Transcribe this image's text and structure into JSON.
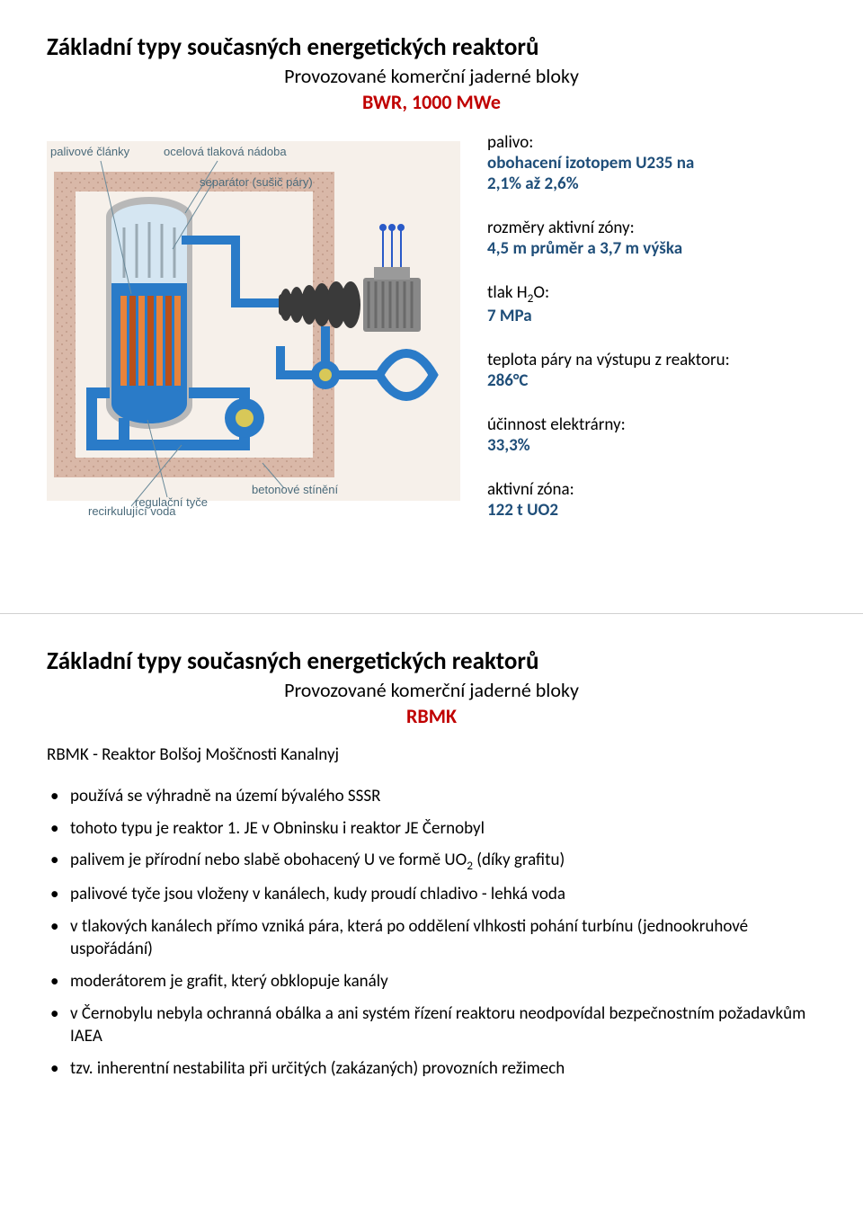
{
  "slide1": {
    "title": "Základní typy současných energetických reaktorů",
    "subtitle": "Provozované komerční jaderné bloky",
    "reactor_name": "BWR, 1000 MWe",
    "reactor_name_color": "#c00000",
    "specs": {
      "fuel_label": "palivo:",
      "fuel_value1": "obohacení izotopem U235 na",
      "fuel_value2": "2,1% až 2,6%",
      "fuel_color": "#1f4e79",
      "dims_label": "rozměry aktivní zóny:",
      "dims_value": "4,5 m průměr a 3,7 m výška",
      "dims_color": "#1f4e79",
      "pressure_label_prefix": "tlak H",
      "pressure_label_sub": "2",
      "pressure_label_suffix": "O:",
      "pressure_value": "7 MPa",
      "pressure_color": "#1f4e79",
      "temp_label": "teplota páry na výstupu z reaktoru:",
      "temp_value": "286°C",
      "temp_color": "#1f4e79",
      "eff_label": "účinnost elektrárny:",
      "eff_value": "33,3%",
      "eff_color": "#1f4e79",
      "zone_label": "aktivní zóna:",
      "zone_value": "122 t UO2",
      "zone_color": "#1f4e79"
    },
    "diagram": {
      "labels": {
        "fuel_rods": "palivové články",
        "vessel": "ocelová tlaková nádoba",
        "separator": "separátor (sušič páry)",
        "control_rods": "regulační tyče",
        "shielding": "betonové stínění",
        "recirculating": "recirkulující voda"
      },
      "colors": {
        "concrete_outer": "#d9b8a8",
        "concrete_dots": "#c09888",
        "water_blue": "#2a7bc8",
        "steam_light": "#d5e6f2",
        "vessel_gray": "#b8b8b8",
        "rod_orange": "#e8833a",
        "rod_dark": "#b8501a",
        "turbine_dark": "#3a3a3a",
        "generator_gray": "#888888",
        "generator_stripes": "#6a6a6a",
        "tower_lines": "#2a5ac8",
        "label_gray": "#4a6a7a",
        "pump_yellow": "#d8c858",
        "background": "#f6f0ea"
      }
    }
  },
  "slide2": {
    "title": "Základní typy současných energetických reaktorů",
    "subtitle": "Provozované komerční jaderné bloky",
    "reactor_name": "RBMK",
    "reactor_name_color": "#c00000",
    "fullname": "RBMK - Reaktor Bolšoj Moščnosti Kanalnyj",
    "bullets": [
      "používá se výhradně na území bývalého SSSR",
      "tohoto typu je reaktor 1. JE v Obninsku i reaktor JE Černobyl",
      "palivem je přírodní nebo slabě obohacený U ve formě UO<sub>2</sub> (díky grafitu)",
      "palivové tyče jsou vloženy v kanálech, kudy proudí chladivo - lehká voda",
      "v tlakových kanálech přímo vzniká pára, která po oddělení vlhkosti pohání turbínu (jednookruhové uspořádání)",
      "moderátorem je grafit, který obklopuje kanály",
      "v Černobylu nebyla ochranná obálka a ani systém řízení reaktoru neodpovídal bezpečnostním požadavkům IAEA",
      "tzv. inherentní nestabilita při určitých (zakázaných) provozních režimech"
    ]
  }
}
